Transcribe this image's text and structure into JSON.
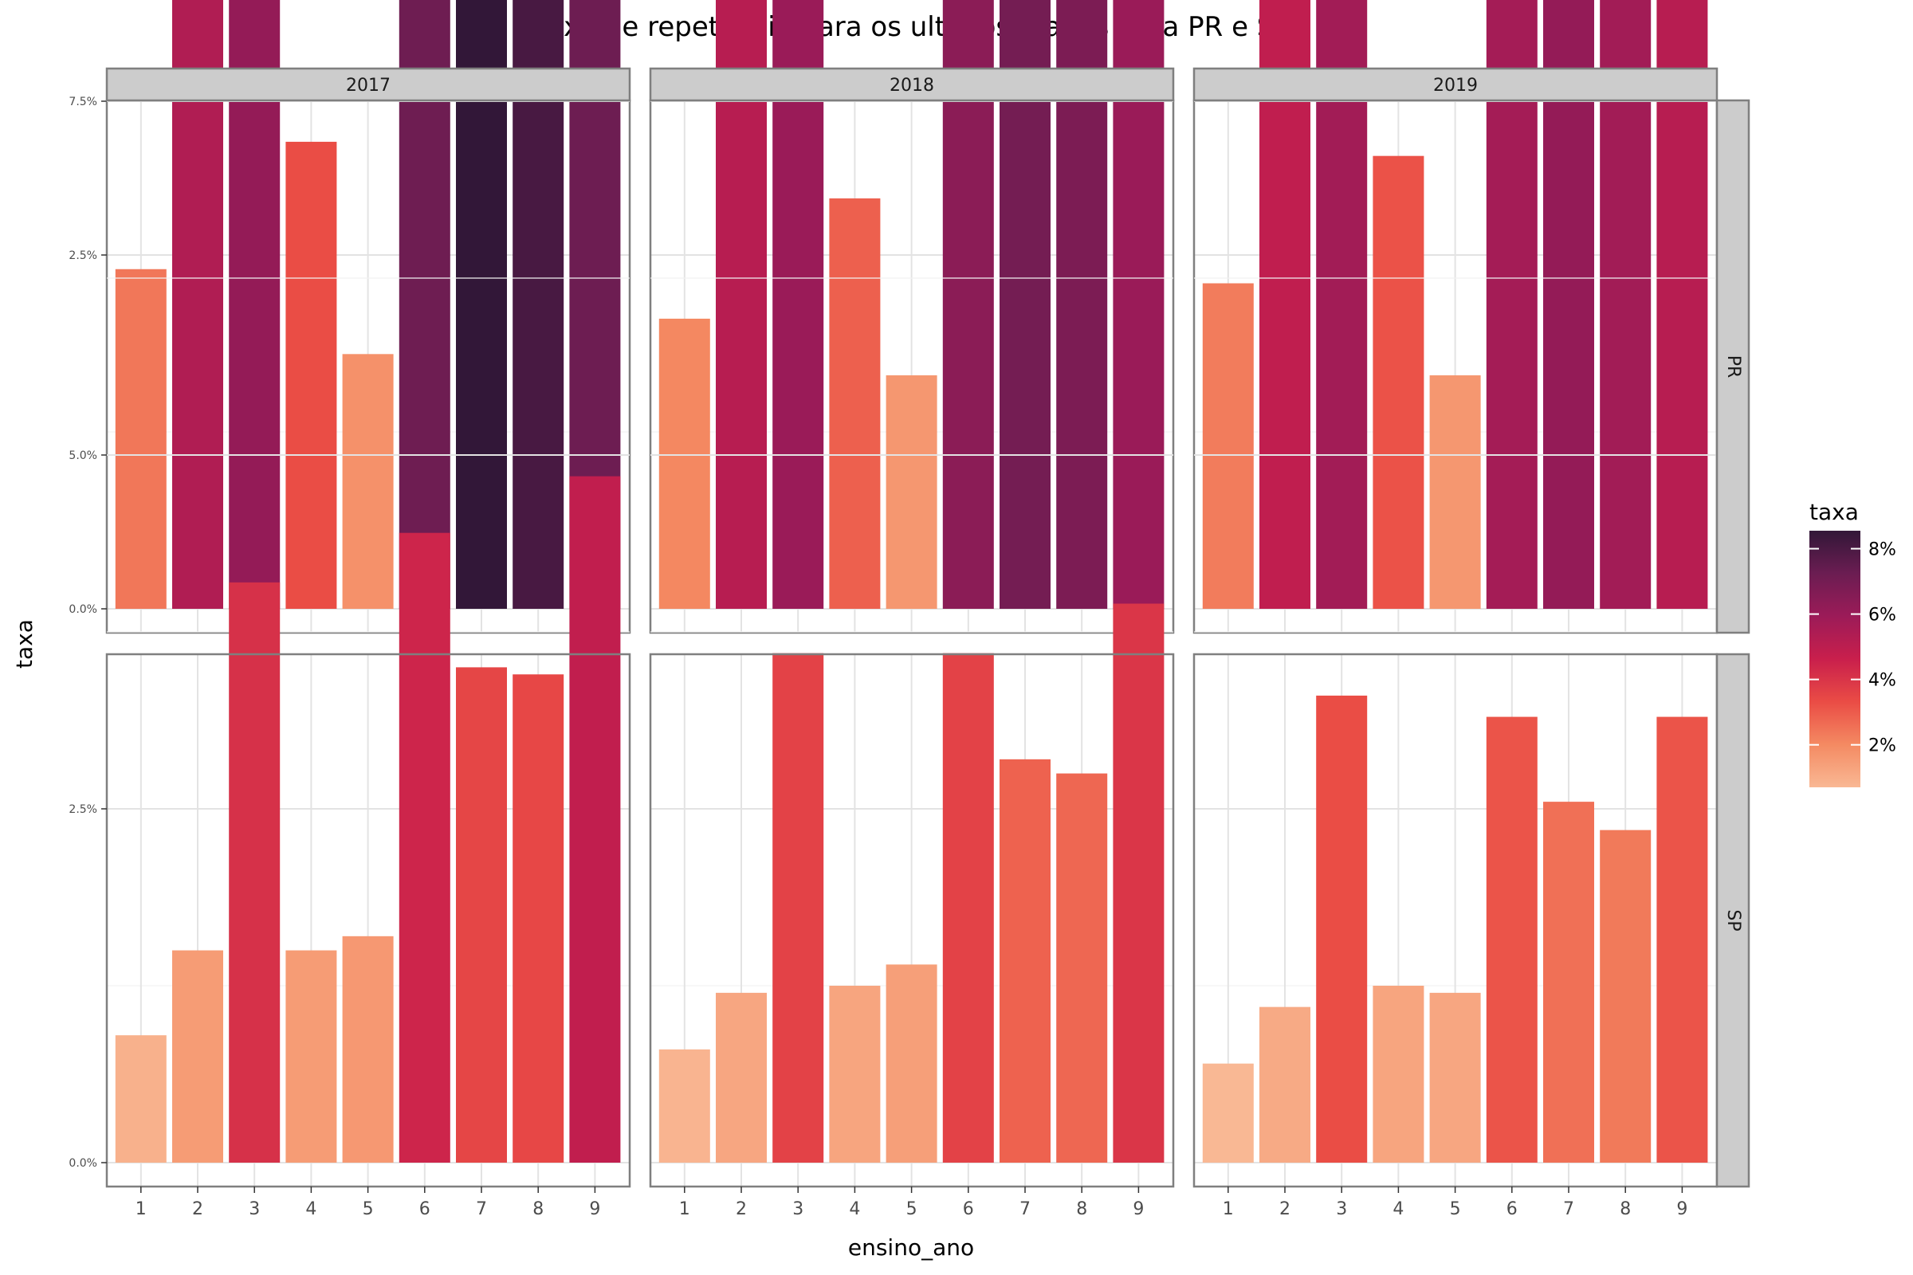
{
  "chart_data": {
    "type": "bar",
    "title": "Taxa de repetencia para os ultimos 3 anos para PR e SP",
    "xlabel": "ensino_ano",
    "ylabel": "taxa",
    "facet_cols": [
      "2017",
      "2018",
      "2019"
    ],
    "facet_rows": [
      "PR",
      "SP"
    ],
    "categories": [
      "1",
      "2",
      "3",
      "4",
      "5",
      "6",
      "7",
      "8",
      "9"
    ],
    "y_ticks": [
      "0.0%",
      "2.5%",
      "5.0%",
      "7.5%"
    ],
    "ylim": [
      0,
      8.9
    ],
    "legend": {
      "title": "taxa",
      "position": "right",
      "labels": [
        "8%",
        "6%",
        "4%",
        "2%"
      ],
      "min": 0.7,
      "max": 8.55,
      "colors": [
        "#f9b894",
        "#f48a62",
        "#ea4c45",
        "#c91f4c",
        "#9c1b58",
        "#6b1d52",
        "#321738"
      ]
    },
    "grid": true,
    "panels": [
      {
        "col": "2017",
        "row": "PR",
        "values": [
          2.4,
          5.35,
          6.15,
          3.3,
          1.8,
          7.15,
          8.55,
          8.05,
          7.2
        ]
      },
      {
        "col": "2018",
        "row": "PR",
        "values": [
          2.05,
          5.15,
          6.0,
          2.9,
          1.65,
          6.4,
          7.0,
          6.8,
          6.0
        ]
      },
      {
        "col": "2019",
        "row": "PR",
        "values": [
          2.3,
          4.9,
          5.75,
          3.2,
          1.65,
          5.7,
          6.15,
          5.75,
          5.15
        ]
      },
      {
        "col": "2017",
        "row": "SP",
        "values": [
          0.9,
          1.5,
          4.1,
          1.5,
          1.6,
          4.45,
          3.5,
          3.45,
          4.85
        ]
      },
      {
        "col": "2018",
        "row": "SP",
        "values": [
          0.8,
          1.2,
          3.6,
          1.25,
          1.4,
          3.6,
          2.85,
          2.75,
          3.95
        ]
      },
      {
        "col": "2019",
        "row": "SP",
        "values": [
          0.7,
          1.1,
          3.3,
          1.25,
          1.2,
          3.15,
          2.55,
          2.35,
          3.15
        ]
      }
    ]
  }
}
